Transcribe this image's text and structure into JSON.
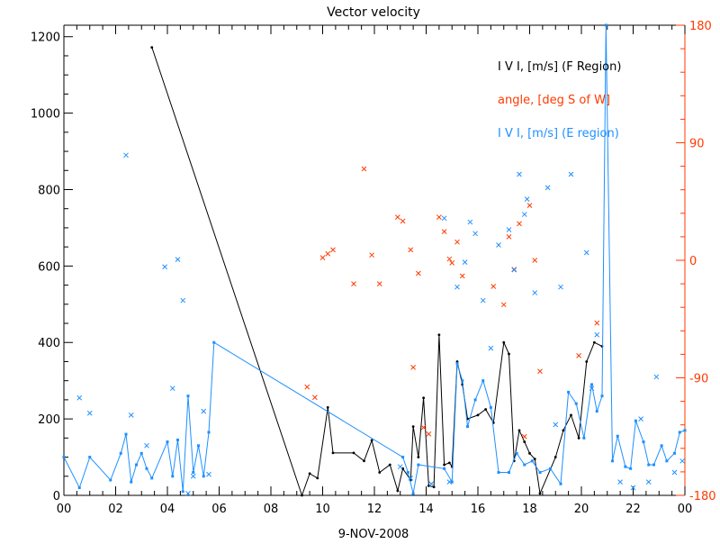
{
  "chart_data": {
    "type": "line",
    "title": "Vector velocity",
    "xlabel": "9-NOV-2008",
    "x_ticks": [
      "00",
      "02",
      "04",
      "06",
      "08",
      "10",
      "12",
      "14",
      "16",
      "18",
      "20",
      "22",
      "00"
    ],
    "xlim": [
      0,
      24
    ],
    "ylim_left": [
      0,
      1230
    ],
    "ylim_right": [
      -180,
      180
    ],
    "y_ticks_left": [
      "0",
      "200",
      "400",
      "600",
      "800",
      "1000",
      "1200"
    ],
    "y_ticks_right": [
      "-180",
      "-90",
      "0",
      "90",
      "180"
    ],
    "legend_placement": "top-right",
    "colors": {
      "f_region": "#000000",
      "angle": "#ff3a00",
      "e_region": "#1e90ff",
      "axis": "#000000",
      "right_axis": "#ff3a00"
    },
    "series": [
      {
        "name": "I V I, [m/s] (F Region)",
        "axis": "left",
        "marker": "dot-line",
        "x": [
          3.4,
          9.2,
          9.5,
          9.8,
          10.2,
          10.4,
          11.2,
          11.6,
          11.9,
          12.2,
          12.6,
          12.9,
          13.1,
          13.4,
          13.5,
          13.7,
          13.9,
          14.1,
          14.3,
          14.5,
          14.7,
          14.9,
          15.0,
          15.2,
          15.4,
          15.6,
          16.0,
          16.3,
          16.6,
          17.0,
          17.2,
          17.4,
          17.6,
          17.8,
          18.0,
          18.2,
          18.4,
          19.0,
          19.3,
          19.6,
          19.9,
          20.2,
          20.5,
          20.8
        ],
        "y": [
          1172,
          0,
          57,
          45,
          230,
          111,
          111,
          90,
          144,
          60,
          80,
          12,
          70,
          40,
          180,
          100,
          255,
          25,
          22,
          420,
          80,
          85,
          75,
          350,
          290,
          200,
          210,
          225,
          190,
          400,
          370,
          90,
          170,
          140,
          110,
          95,
          5,
          100,
          170,
          210,
          150,
          350,
          400,
          390
        ]
      },
      {
        "name": "angle, [deg S of W]",
        "axis": "right",
        "marker": "x",
        "x": [
          9.4,
          9.7,
          10.0,
          10.2,
          10.4,
          11.2,
          11.6,
          11.9,
          12.2,
          12.9,
          13.1,
          13.4,
          13.5,
          13.7,
          13.9,
          14.1,
          14.5,
          14.7,
          14.9,
          15.0,
          15.2,
          15.4,
          16.6,
          17.0,
          17.2,
          17.4,
          17.6,
          17.8,
          18.0,
          18.2,
          18.4,
          19.9,
          20.6
        ],
        "y": [
          -97,
          -105,
          2,
          5,
          8,
          -18,
          70,
          4,
          -18,
          33,
          30,
          8,
          -82,
          -10,
          -128,
          -133,
          33,
          22,
          1,
          -2,
          14,
          -12,
          -20,
          -34,
          18,
          -7,
          28,
          -135,
          42,
          0,
          -85,
          -73,
          -48
        ]
      },
      {
        "name": "I V I, [m/s] (E region)",
        "axis": "left",
        "marker": "square-line",
        "x": [
          0.0,
          0.6,
          1.0,
          1.8,
          2.2,
          2.4,
          2.6,
          2.8,
          3.0,
          3.2,
          3.4,
          4.0,
          4.2,
          4.4,
          4.6,
          4.8,
          5.0,
          5.2,
          5.4,
          5.6,
          5.8,
          13.1,
          13.3,
          13.5,
          13.7,
          14.7,
          15.0,
          15.2,
          15.4,
          15.6,
          15.9,
          16.2,
          16.5,
          16.8,
          17.2,
          17.5,
          17.8,
          18.1,
          18.4,
          18.8,
          19.2,
          19.5,
          19.8,
          20.1,
          20.4,
          20.6,
          20.8,
          20.95,
          21.2,
          21.4,
          21.7,
          21.9,
          22.1,
          22.4,
          22.6,
          22.8,
          23.1,
          23.3,
          23.6,
          23.8,
          24.0
        ],
        "y": [
          100,
          20,
          100,
          40,
          110,
          160,
          35,
          80,
          110,
          70,
          45,
          140,
          50,
          145,
          10,
          260,
          60,
          130,
          50,
          165,
          400,
          100,
          60,
          5,
          80,
          70,
          35,
          345,
          300,
          180,
          250,
          300,
          230,
          60,
          60,
          110,
          80,
          90,
          60,
          70,
          30,
          270,
          240,
          150,
          290,
          220,
          260,
          1230,
          90,
          155,
          75,
          70,
          195,
          140,
          80,
          80,
          130,
          90,
          110,
          165,
          170
        ]
      },
      {
        "name": "",
        "axis": "left",
        "marker": "x",
        "x": [
          0.6,
          1.0,
          2.4,
          2.6,
          3.2,
          3.9,
          4.2,
          4.4,
          4.6,
          4.8,
          5.0,
          5.4,
          5.6,
          13.0,
          13.4,
          14.2,
          14.7,
          14.9,
          15.2,
          15.5,
          15.7,
          15.9,
          16.2,
          16.5,
          16.8,
          17.2,
          17.4,
          17.6,
          17.8,
          17.9,
          18.2,
          18.7,
          19.0,
          19.2,
          19.6,
          20.2,
          20.4,
          20.6,
          21.5,
          22.0,
          22.3,
          22.6,
          22.9,
          23.6,
          23.9
        ],
        "y": [
          255,
          215,
          890,
          210,
          130,
          598,
          280,
          617,
          510,
          5,
          50,
          220,
          55,
          75,
          45,
          30,
          725,
          35,
          545,
          610,
          715,
          685,
          510,
          385,
          655,
          695,
          590,
          840,
          735,
          775,
          530,
          805,
          185,
          545,
          840,
          635,
          280,
          420,
          35,
          20,
          200,
          35,
          310,
          60,
          90
        ]
      }
    ]
  }
}
